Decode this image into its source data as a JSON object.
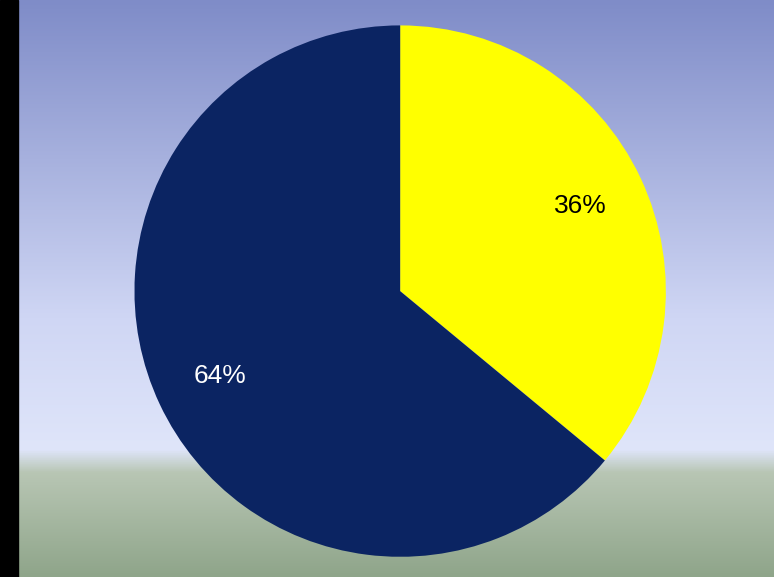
{
  "chart_data": {
    "type": "pie",
    "values": [
      36,
      64
    ],
    "value_labels": [
      "36%",
      "64%"
    ],
    "colors": [
      "#ffff00",
      "#0b2462"
    ],
    "data_labels": true
  }
}
